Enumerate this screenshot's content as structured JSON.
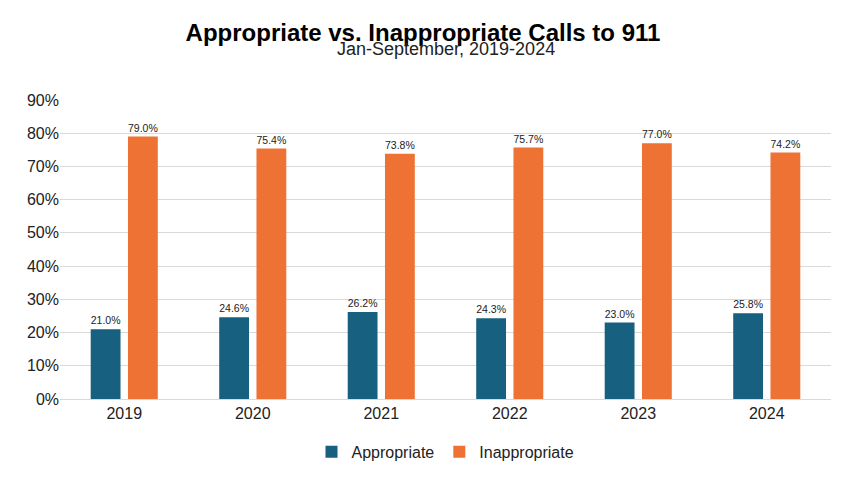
{
  "chart_data": {
    "type": "bar",
    "title": "Appropriate vs. Inappropriate Calls to 911",
    "subtitle": "Jan-September, 2019-2024",
    "categories": [
      "2019",
      "2020",
      "2021",
      "2022",
      "2023",
      "2024"
    ],
    "series": [
      {
        "name": "Appropriate",
        "color": "#17607f",
        "values": [
          21.0,
          24.6,
          26.2,
          24.3,
          23.0,
          25.8
        ],
        "value_labels": [
          "21.0%",
          "24.6%",
          "26.2%",
          "24.3%",
          "23.0%",
          "25.8%"
        ]
      },
      {
        "name": "Inappropriate",
        "color": "#ed7233",
        "values": [
          79.0,
          75.4,
          73.8,
          75.7,
          77.0,
          74.2
        ],
        "value_labels": [
          "79.0%",
          "75.4%",
          "73.8%",
          "75.7%",
          "77.0%",
          "74.2%"
        ]
      }
    ],
    "ylim": [
      0,
      90
    ],
    "yticks": [
      {
        "value": 0,
        "label": "0%"
      },
      {
        "value": 10,
        "label": "10%"
      },
      {
        "value": 20,
        "label": "20%"
      },
      {
        "value": 30,
        "label": "30%"
      },
      {
        "value": 40,
        "label": "40%"
      },
      {
        "value": 50,
        "label": "50%"
      },
      {
        "value": 60,
        "label": "60%"
      },
      {
        "value": 70,
        "label": "70%"
      },
      {
        "value": 80,
        "label": "80%"
      },
      {
        "value": 90,
        "label": "90%"
      }
    ],
    "grid": true,
    "legend": "bottom",
    "data_labels": true
  }
}
